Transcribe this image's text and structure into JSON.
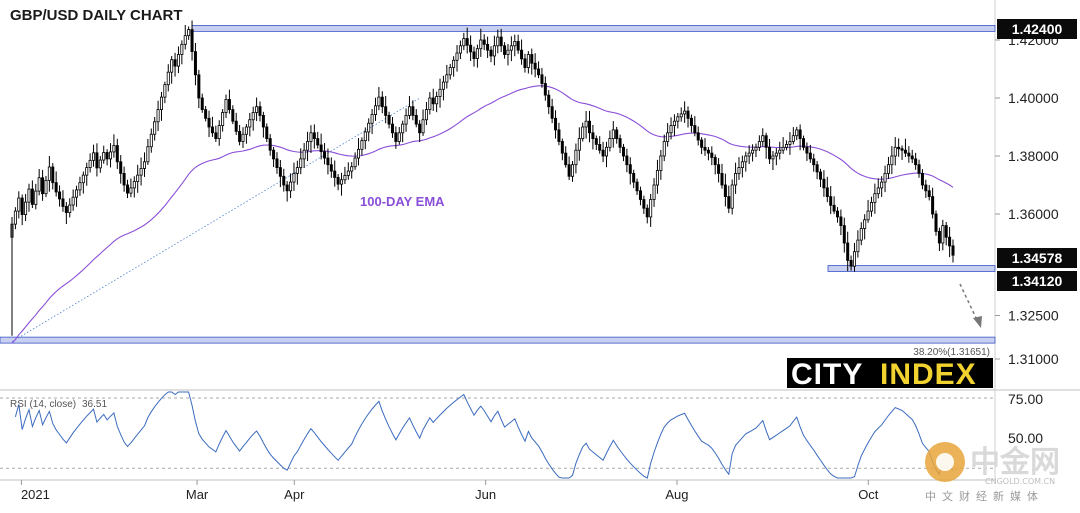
{
  "chart_data": {
    "type": "candlestick",
    "title": "GBP/USD DAILY CHART",
    "y_ticks": [
      "1.42000",
      "1.40000",
      "1.38000",
      "1.36000",
      "1.32500",
      "1.31000"
    ],
    "y_tick_values": [
      1.42,
      1.4,
      1.38,
      1.36,
      1.325,
      1.31
    ],
    "x_ticks": [
      {
        "label": "2021",
        "day": 3
      },
      {
        "label": "Mar",
        "day": 59
      },
      {
        "label": "Apr",
        "day": 90
      },
      {
        "label": "Jun",
        "day": 151
      },
      {
        "label": "Aug",
        "day": 212
      },
      {
        "label": "Oct",
        "day": 273
      }
    ],
    "ohlc_closes": [
      1.3565,
      1.361,
      1.3655,
      1.3598,
      1.3641,
      1.3686,
      1.3633,
      1.3679,
      1.3725,
      1.367,
      1.3716,
      1.3762,
      1.3708,
      1.3676,
      1.3652,
      1.3626,
      1.3605,
      1.3631,
      1.3658,
      1.3683,
      1.3708,
      1.3734,
      1.376,
      1.3785,
      1.3811,
      1.3759,
      1.3786,
      1.3812,
      1.379,
      1.3814,
      1.3836,
      1.378,
      1.374,
      1.37,
      1.3672,
      1.369,
      1.3712,
      1.3734,
      1.3757,
      1.378,
      1.3832,
      1.3875,
      1.3918,
      1.396,
      1.4003,
      1.4046,
      1.4089,
      1.4132,
      1.411,
      1.415,
      1.4185,
      1.4215,
      1.4236,
      1.416,
      1.408,
      1.4,
      1.396,
      1.393,
      1.39,
      1.388,
      1.386,
      1.3905,
      1.395,
      1.3995,
      1.396,
      1.392,
      1.3885,
      1.385,
      1.3875,
      1.39,
      1.3925,
      1.395,
      1.397,
      1.394,
      1.39,
      1.386,
      1.382,
      1.379,
      1.376,
      1.373,
      1.37,
      1.368,
      1.371,
      1.374,
      1.376,
      1.379,
      1.382,
      1.385,
      1.388,
      1.386,
      1.3838,
      1.3815,
      1.3793,
      1.377,
      1.3748,
      1.3726,
      1.3703,
      1.3718,
      1.3733,
      1.3748,
      1.3763,
      1.3793,
      1.3823,
      1.3853,
      1.3883,
      1.3913,
      1.3943,
      1.3973,
      1.4003,
      1.397,
      1.394,
      1.391,
      1.388,
      1.385,
      1.388,
      1.391,
      1.394,
      1.397,
      1.394,
      1.391,
      1.388,
      1.3925,
      1.396,
      1.4,
      1.398,
      1.4005,
      1.403,
      1.4055,
      1.408,
      1.4105,
      1.413,
      1.4155,
      1.418,
      1.4205,
      1.4182,
      1.4159,
      1.4136,
      1.417,
      1.42,
      1.4185,
      1.4165,
      1.4145,
      1.418,
      1.421,
      1.418,
      1.415,
      1.4165,
      1.418,
      1.4195,
      1.4165,
      1.4135,
      1.4105,
      1.415,
      1.412,
      1.41,
      1.408,
      1.405,
      1.401,
      1.397,
      1.393,
      1.389,
      1.385,
      1.381,
      1.377,
      1.373,
      1.377,
      1.382,
      1.386,
      1.39,
      1.392,
      1.388,
      1.386,
      1.384,
      1.382,
      1.38,
      1.383,
      1.386,
      1.389,
      1.386,
      1.383,
      1.38,
      1.377,
      1.374,
      1.371,
      1.368,
      1.365,
      1.362,
      1.359,
      1.365,
      1.37,
      1.375,
      1.38,
      1.385,
      1.388,
      1.3905,
      1.392,
      1.3935,
      1.3945,
      1.3955,
      1.393,
      1.3905,
      1.388,
      1.3855,
      1.383,
      1.382,
      1.381,
      1.3795,
      1.377,
      1.374,
      1.37,
      1.366,
      1.362,
      1.37,
      1.374,
      1.376,
      1.378,
      1.38,
      1.381,
      1.382,
      1.383,
      1.385,
      1.387,
      1.383,
      1.379,
      1.38,
      1.381,
      1.382,
      1.383,
      1.384,
      1.385,
      1.387,
      1.389,
      1.386,
      1.383,
      1.381,
      1.379,
      1.377,
      1.3745,
      1.372,
      1.369,
      1.366,
      1.363,
      1.361,
      1.359,
      1.356,
      1.35,
      1.344,
      1.342,
      1.347,
      1.351,
      1.355,
      1.358,
      1.361,
      1.364,
      1.367,
      1.369,
      1.371,
      1.374,
      1.377,
      1.38,
      1.383,
      1.3825,
      1.382,
      1.381,
      1.38,
      1.379,
      1.377,
      1.374,
      1.37,
      1.368,
      1.366,
      1.36,
      1.354,
      1.35,
      1.356,
      1.352,
      1.349,
      1.3458
    ],
    "ema_label": "100-DAY EMA",
    "levels": {
      "top_resistance": "1.42400",
      "current_price": "1.34578",
      "support": "1.34120",
      "fib_label": "38.20%(1.31651)"
    },
    "logo": {
      "city": "CITY",
      "index": "INDEX"
    },
    "rsi": {
      "label": "RSI (14, close)",
      "value": "36.51",
      "ticks": [
        "75.00",
        "50.00"
      ]
    },
    "watermark": {
      "big": "中金网",
      "small": "CNGOLD.COM.CN",
      "cn": "中文财经新媒体"
    },
    "colors": {
      "candle": "#000000",
      "ema": "#8a4fd8",
      "rsi": "#3b6bbf",
      "level_band": "#9aa7e6",
      "price_box": "#0a0a0a",
      "logo_bg": "#000000",
      "logo_accent": "#f2d22e"
    }
  }
}
